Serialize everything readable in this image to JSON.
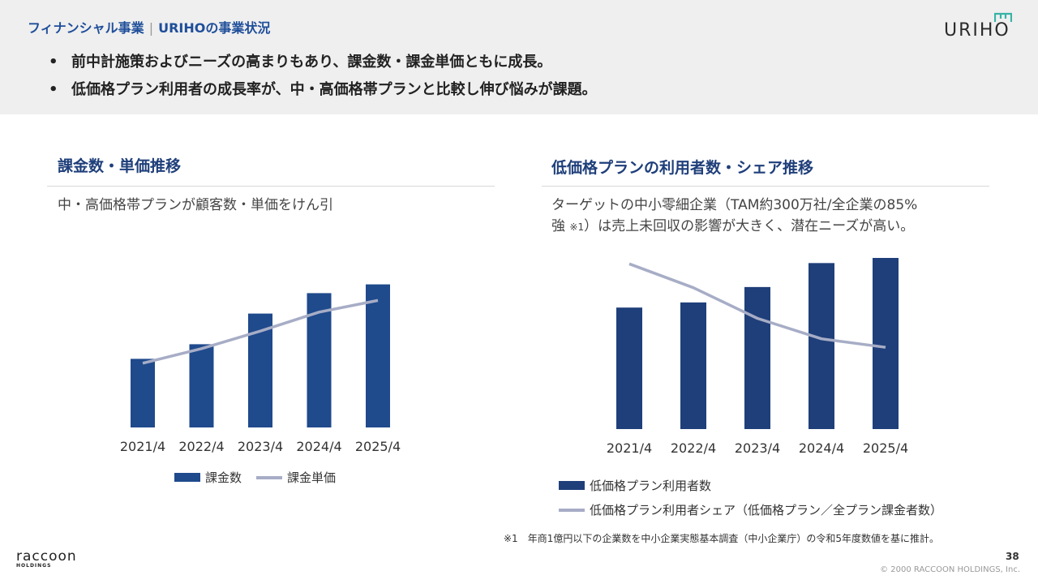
{
  "header": {
    "section_title": "フィナンシャル事業",
    "separator": "|",
    "subtitle": "URIHOの事業状況",
    "bullets": [
      "前中計施策およびニーズの高まりもあり、課金数・課金単価ともに成長。",
      "低価格プラン利用者の成長率が、中・高価格帯プランと比較し伸び悩みが課題。"
    ],
    "bullet_glyph": "•"
  },
  "logo": {
    "text": "URIHO",
    "icon": "uriho-roof-icon"
  },
  "left_panel": {
    "title": "課金数・単価推移",
    "description": "中・高価格帯プランが顧客数・単価をけん引"
  },
  "right_panel": {
    "title": "低価格プランの利用者数・シェア推移",
    "description_line1": "ターゲットの中小零細企業（TAM約300万社/全企業の85%",
    "description_line2_a": "強",
    "description_line2_note": "※1",
    "description_line2_b": "）は売上未回収の影響が大きく、潜在ニーズが高い。"
  },
  "chart_data": [
    {
      "type": "bar",
      "categories": [
        "2021/4",
        "2022/4",
        "2023/4",
        "2024/4",
        "2025/4"
      ],
      "series": [
        {
          "name": "課金数",
          "kind": "bar",
          "values": [
            47,
            57,
            78,
            92,
            98
          ]
        },
        {
          "name": "課金単価",
          "kind": "line",
          "values": [
            44,
            54,
            66,
            79,
            87
          ]
        }
      ],
      "ylim": [
        0,
        100
      ],
      "colors": {
        "bar": "#1f4a8c",
        "line": "#a7adc6"
      },
      "legend": "bottom"
    },
    {
      "type": "bar",
      "categories": [
        "2021/4",
        "2022/4",
        "2023/4",
        "2024/4",
        "2025/4"
      ],
      "series": [
        {
          "name": "低価格プラン利用者数",
          "kind": "bar",
          "values": [
            71,
            74,
            83,
            97,
            100
          ]
        },
        {
          "name": "低価格プラン利用者シェア（低価格プラン／全プラン課金者数）",
          "kind": "line",
          "values": [
            97,
            83,
            65,
            53,
            48
          ]
        }
      ],
      "ylim": [
        0,
        100
      ],
      "colors": {
        "bar": "#1f3f7a",
        "line": "#a7adc6"
      },
      "legend": "bottom"
    }
  ],
  "footnote": "※1　年商1億円以下の企業数を中小企業実態基本調査（中小企業庁）の令和5年度数値を基に推計。",
  "footer": {
    "company_logo_text": "raccoon",
    "company_logo_sub": "HOLDINGS",
    "page_number": "38",
    "copyright": "© 2000 RACCOON HOLDINGS, Inc."
  }
}
